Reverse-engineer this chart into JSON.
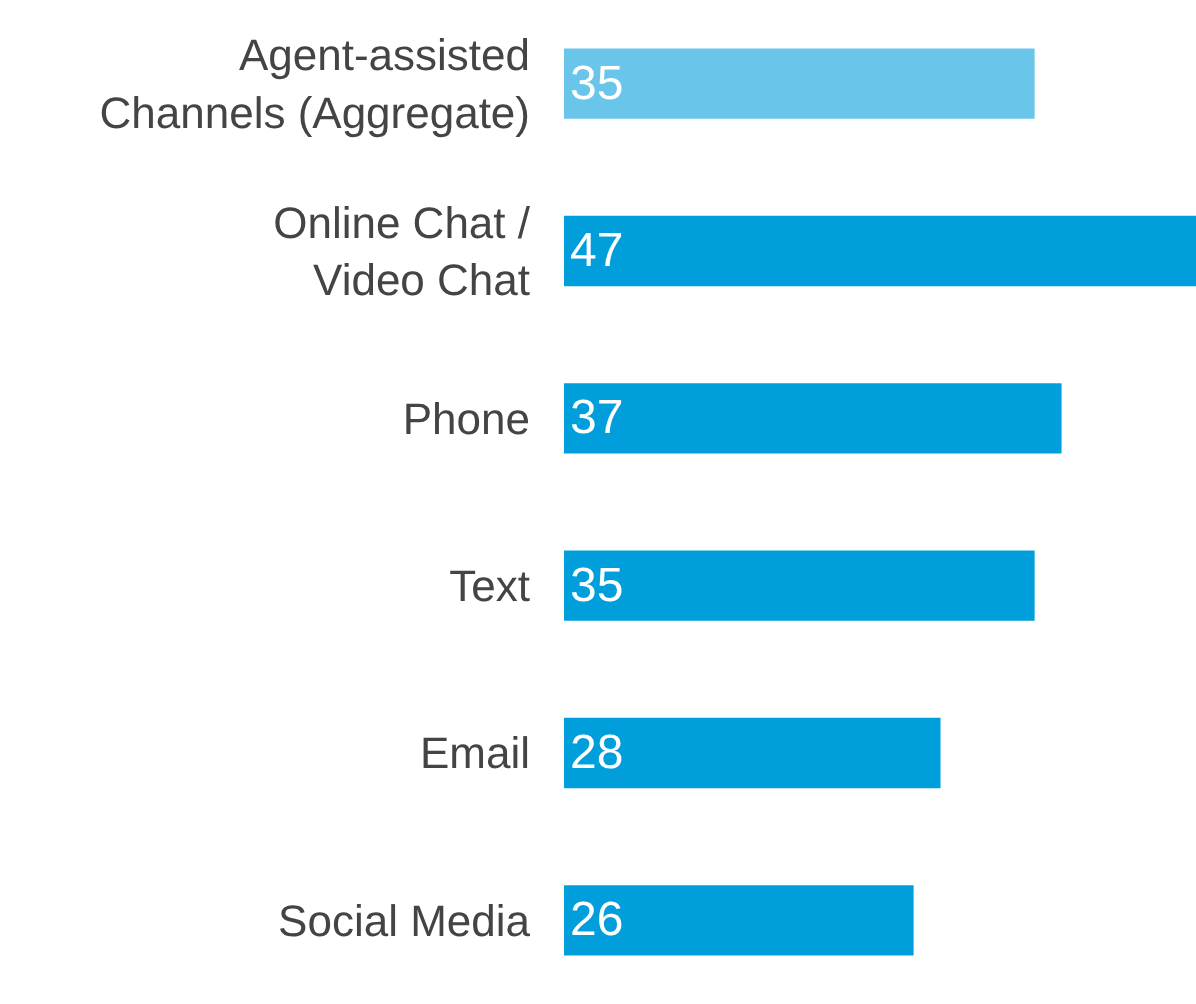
{
  "chart_data": {
    "type": "bar",
    "orientation": "horizontal",
    "categories": [
      "Agent-assisted\nChannels (Aggregate)",
      "Online Chat /\nVideo Chat",
      "Phone",
      "Text",
      "Email",
      "Social Media"
    ],
    "values": [
      35,
      47,
      37,
      35,
      28,
      26
    ],
    "colors": [
      "#6ac5ea",
      "#009fdb",
      "#009fdb",
      "#009fdb",
      "#009fdb",
      "#009fdb"
    ],
    "data_labels": true
  }
}
